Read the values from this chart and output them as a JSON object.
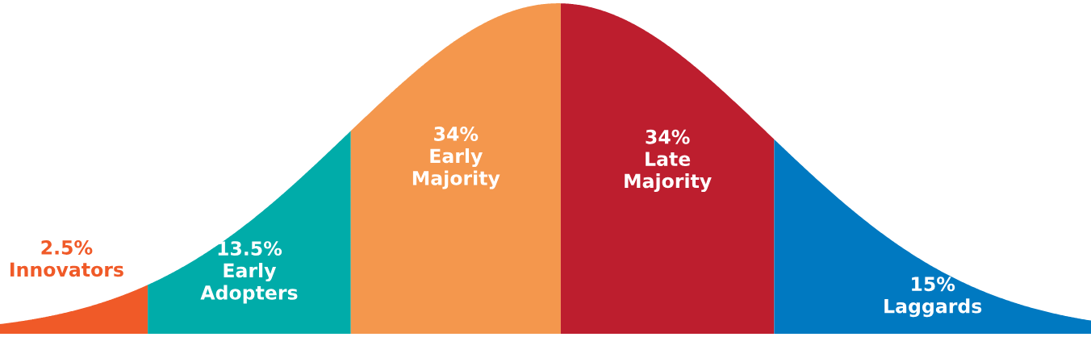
{
  "chart_data": {
    "type": "other",
    "categories": [
      "Innovators",
      "Early Adopters",
      "Early Majority",
      "Late Majority",
      "Laggards"
    ],
    "values": [
      2.5,
      13.5,
      34,
      34,
      15
    ],
    "value_labels": [
      "2.5%",
      "13.5%",
      "34%",
      "34%",
      "15%"
    ],
    "colors": [
      "#f05a28",
      "#00aca9",
      "#f4974d",
      "#bd1e2e",
      "#0079c1"
    ]
  }
}
